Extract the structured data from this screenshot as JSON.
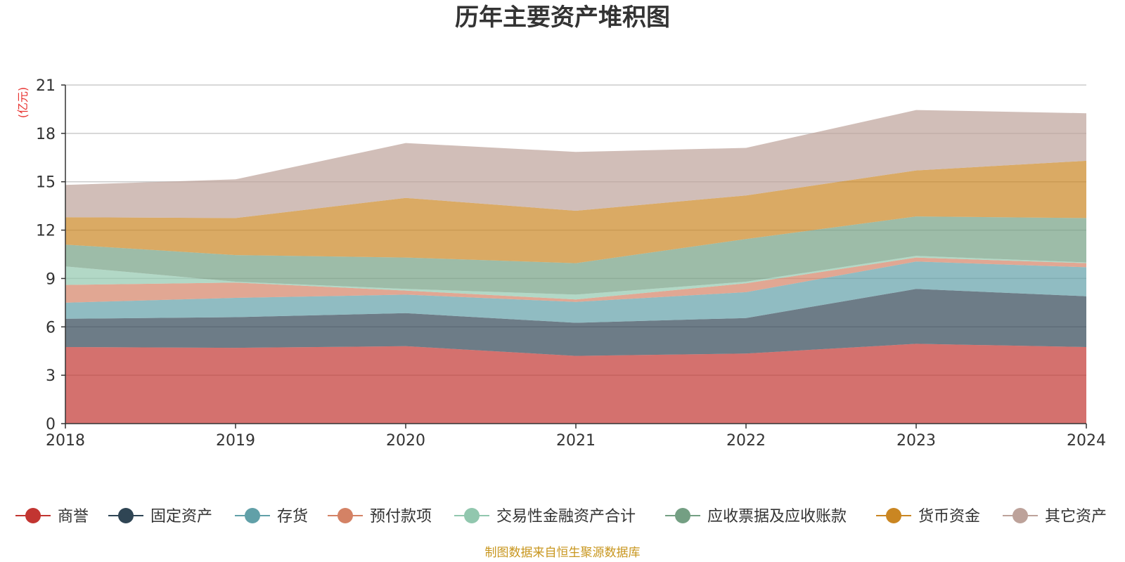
{
  "chart_data": {
    "type": "area",
    "stacked": true,
    "title": "历年主要资产堆积图",
    "unit_label": "(亿元)",
    "source": "制图数据来自恒生聚源数据库",
    "xlabel": "",
    "ylabel": "(亿元)",
    "categories": [
      "2018",
      "2019",
      "2020",
      "2021",
      "2022",
      "2023",
      "2024"
    ],
    "ylim": [
      0,
      21
    ],
    "yticks": [
      0,
      3,
      6,
      9,
      12,
      15,
      18,
      21
    ],
    "grid": true,
    "legend_position": "bottom",
    "series": [
      {
        "name": "商誉",
        "color": "#c23531",
        "values": [
          4.75,
          4.7,
          4.8,
          4.2,
          4.35,
          4.95,
          4.75
        ]
      },
      {
        "name": "固定资产",
        "color": "#2f4554",
        "values": [
          1.75,
          1.9,
          2.05,
          2.05,
          2.2,
          3.4,
          3.15
        ]
      },
      {
        "name": "存货",
        "color": "#61a0a8",
        "values": [
          1.0,
          1.2,
          1.15,
          1.3,
          1.6,
          1.7,
          1.8
        ]
      },
      {
        "name": "预付款项",
        "color": "#d48265",
        "values": [
          1.1,
          0.95,
          0.25,
          0.15,
          0.55,
          0.25,
          0.25
        ]
      },
      {
        "name": "交易性金融资产合计",
        "color": "#91c7ae",
        "values": [
          1.15,
          0.05,
          0.1,
          0.3,
          0.1,
          0.1,
          0.05
        ]
      },
      {
        "name": "应收票据及应收账款",
        "color": "#749f83",
        "values": [
          1.35,
          1.65,
          1.95,
          1.95,
          2.65,
          2.45,
          2.75
        ]
      },
      {
        "name": "货币资金",
        "color": "#ca8622",
        "values": [
          1.7,
          2.3,
          3.7,
          3.25,
          2.7,
          2.85,
          3.55
        ]
      },
      {
        "name": "其它资产",
        "color": "#bda29a",
        "values": [
          2.0,
          2.4,
          3.4,
          3.65,
          2.95,
          3.75,
          2.95
        ]
      }
    ]
  }
}
